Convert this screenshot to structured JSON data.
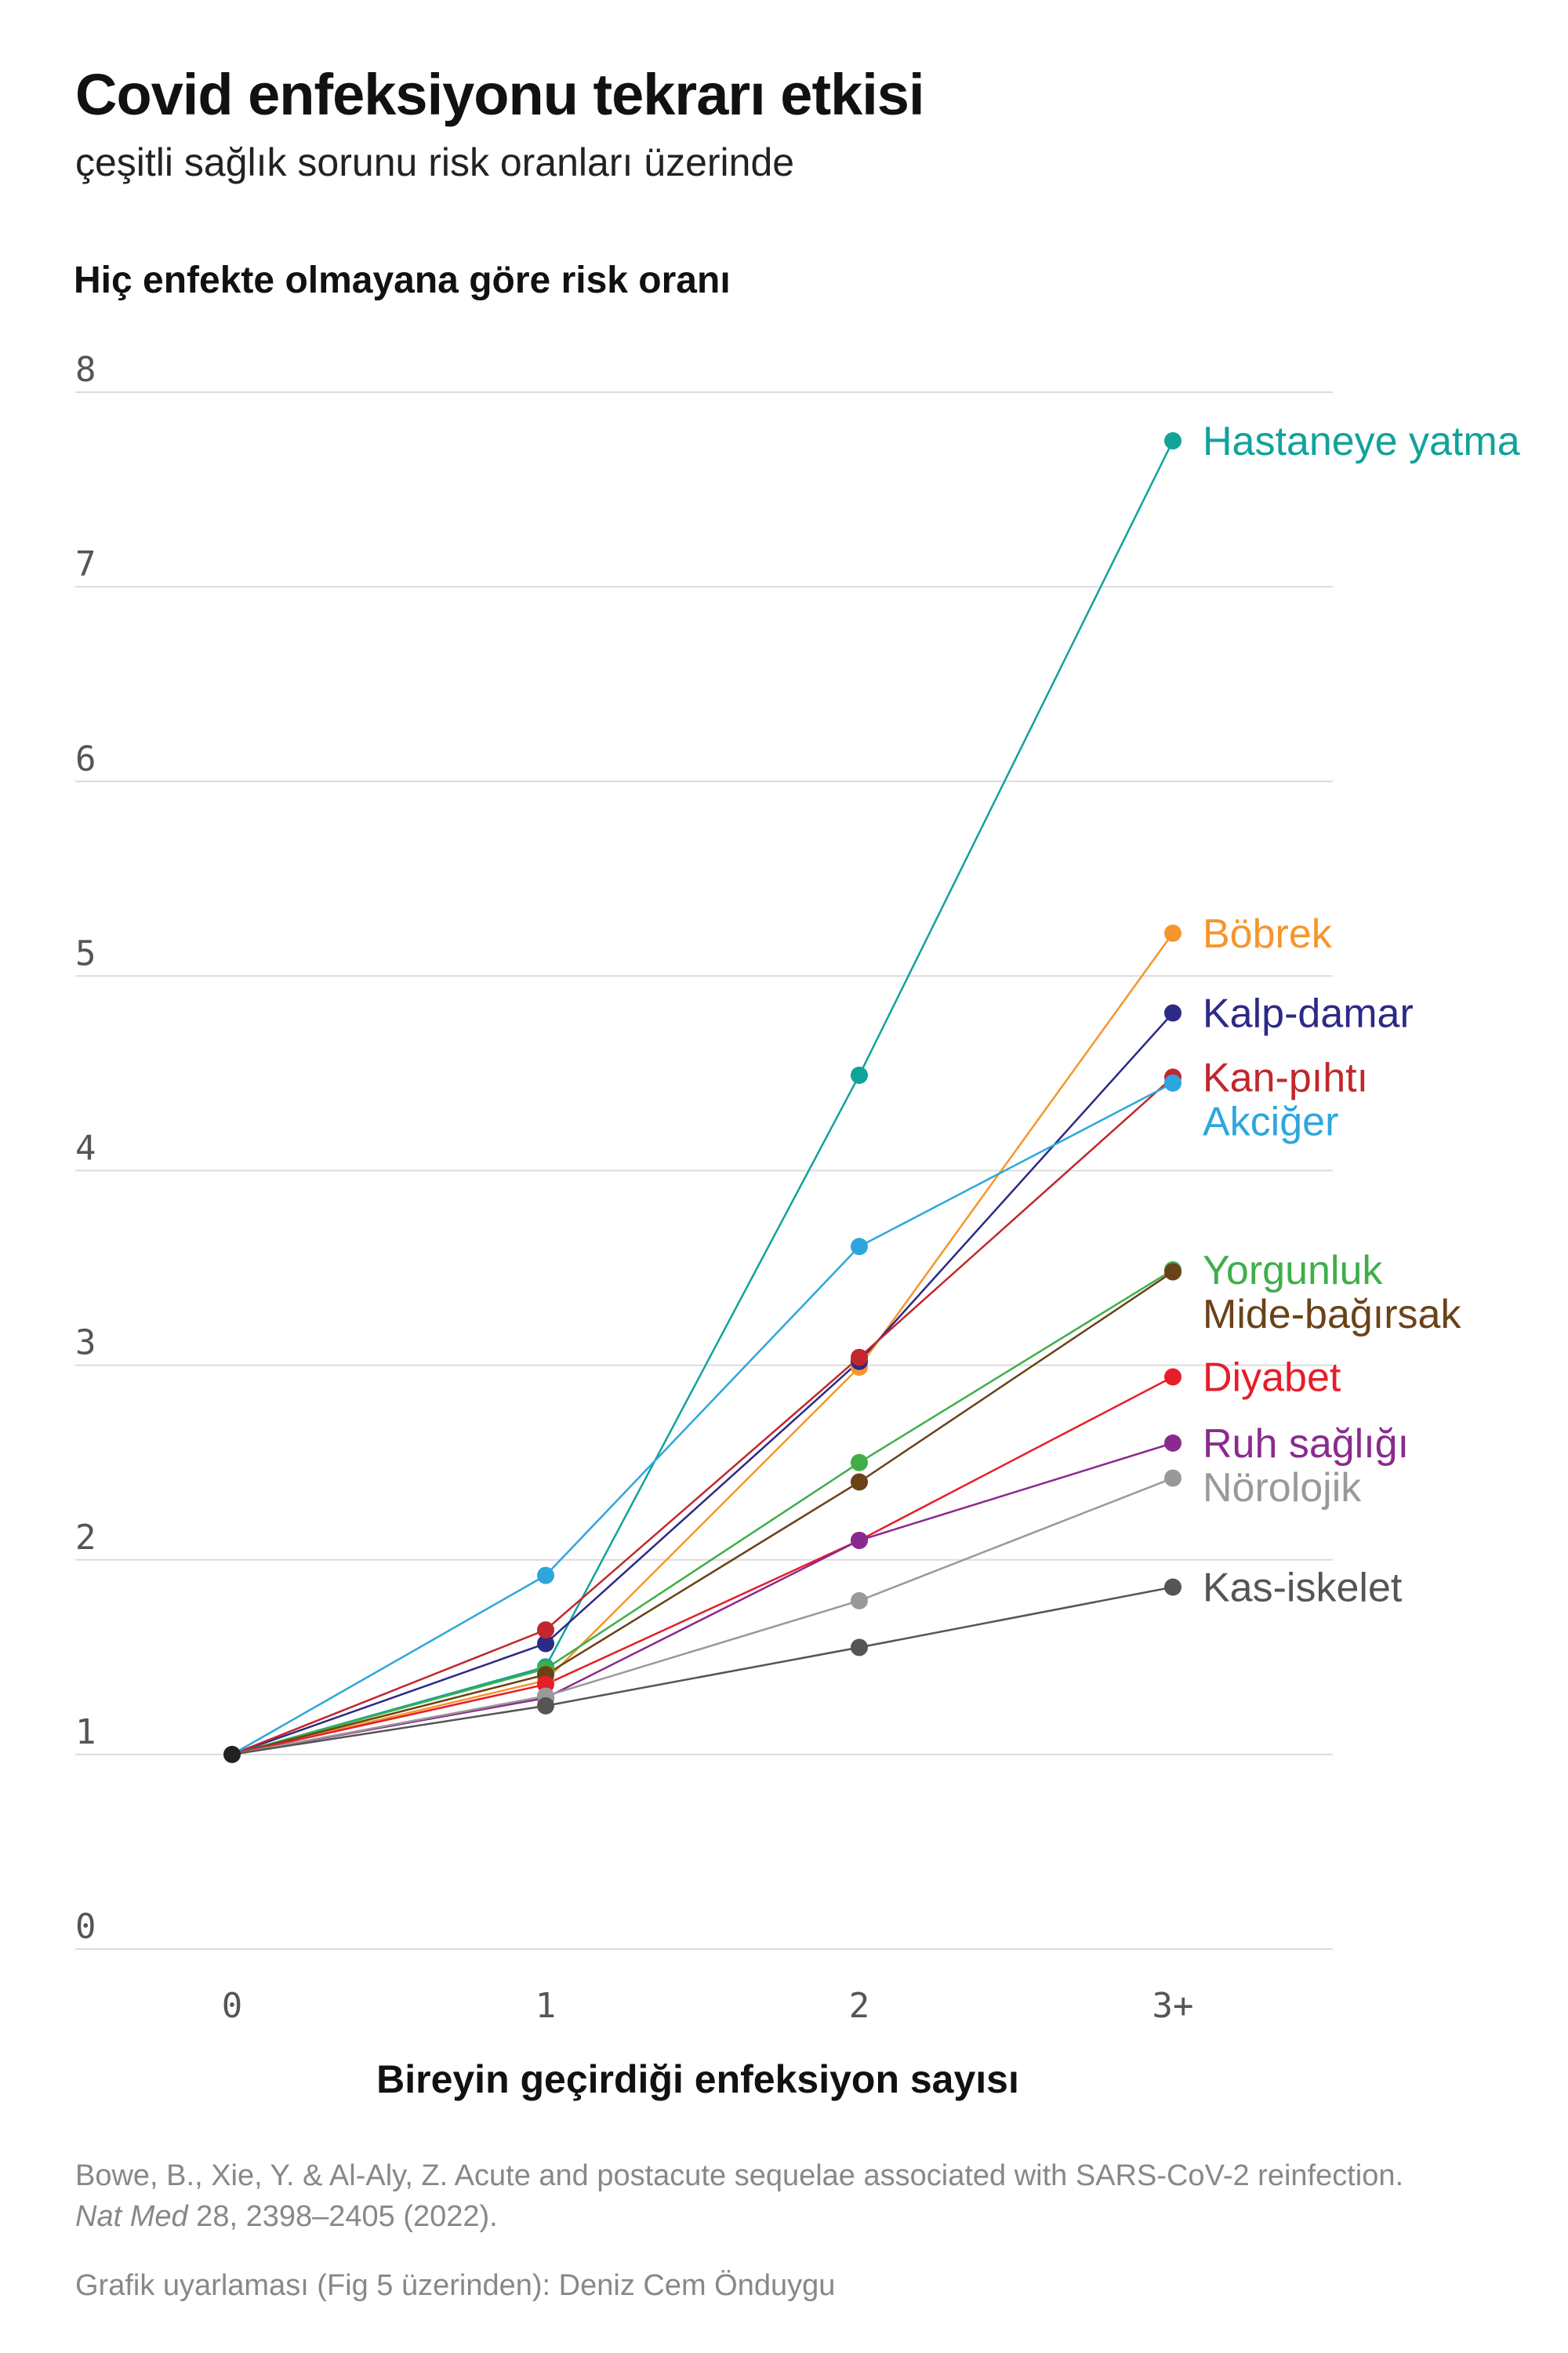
{
  "title": "Covid enfeksiyonu tekrarı etkisi",
  "subtitle": "çeşitli sağlık sorunu risk oranları üzerinde",
  "source": {
    "line1": "Bowe, B., Xie, Y. & Al-Aly, Z. Acute and postacute sequelae associated with SARS-CoV-2 reinfection.",
    "journal": "Nat Med",
    "line2_rest": " 28, 2398–2405 (2022)."
  },
  "credit": "Grafik uyarlaması (Fig 5 üzerinden): Deniz Cem Önduygu",
  "chart_data": {
    "type": "line",
    "ylabel": "Hiç enfekte olmayana göre risk oranı",
    "xlabel": "Bireyin geçirdiği enfeksiyon sayısı",
    "categories": [
      "0",
      "1",
      "2",
      "3+"
    ],
    "ylim": [
      0,
      8
    ],
    "yticks": [
      0,
      1,
      2,
      3,
      4,
      5,
      6,
      7,
      8
    ],
    "grid": true,
    "series": [
      {
        "name": "Hastaneye yatma",
        "color": "#10a39a",
        "values": [
          1.0,
          1.45,
          4.49,
          7.75
        ]
      },
      {
        "name": "Böbrek",
        "color": "#f5962b",
        "values": [
          1.0,
          1.38,
          2.99,
          5.22
        ]
      },
      {
        "name": "Kalp-damar",
        "color": "#2c2a86",
        "values": [
          1.0,
          1.57,
          3.02,
          4.81
        ]
      },
      {
        "name": "Kan-pıhtı",
        "color": "#c1272d",
        "values": [
          1.0,
          1.64,
          3.04,
          4.48
        ]
      },
      {
        "name": "Akciğer",
        "color": "#2ea6dd",
        "values": [
          1.0,
          1.92,
          3.61,
          4.45
        ]
      },
      {
        "name": "Yorgunluk",
        "color": "#3fae49",
        "values": [
          1.0,
          1.44,
          2.5,
          3.49
        ]
      },
      {
        "name": "Mide-bağırsak",
        "color": "#6b4218",
        "values": [
          1.0,
          1.41,
          2.4,
          3.48
        ]
      },
      {
        "name": "Diyabet",
        "color": "#e61e2a",
        "values": [
          1.0,
          1.36,
          2.1,
          2.94
        ]
      },
      {
        "name": "Ruh sağlığı",
        "color": "#8b2a8e",
        "values": [
          1.0,
          1.29,
          2.1,
          2.6
        ]
      },
      {
        "name": "Nörolojik",
        "color": "#999999",
        "values": [
          1.0,
          1.3,
          1.79,
          2.42
        ]
      },
      {
        "name": "Kas-iskelet",
        "color": "#555555",
        "values": [
          1.0,
          1.25,
          1.55,
          1.86
        ]
      }
    ]
  }
}
